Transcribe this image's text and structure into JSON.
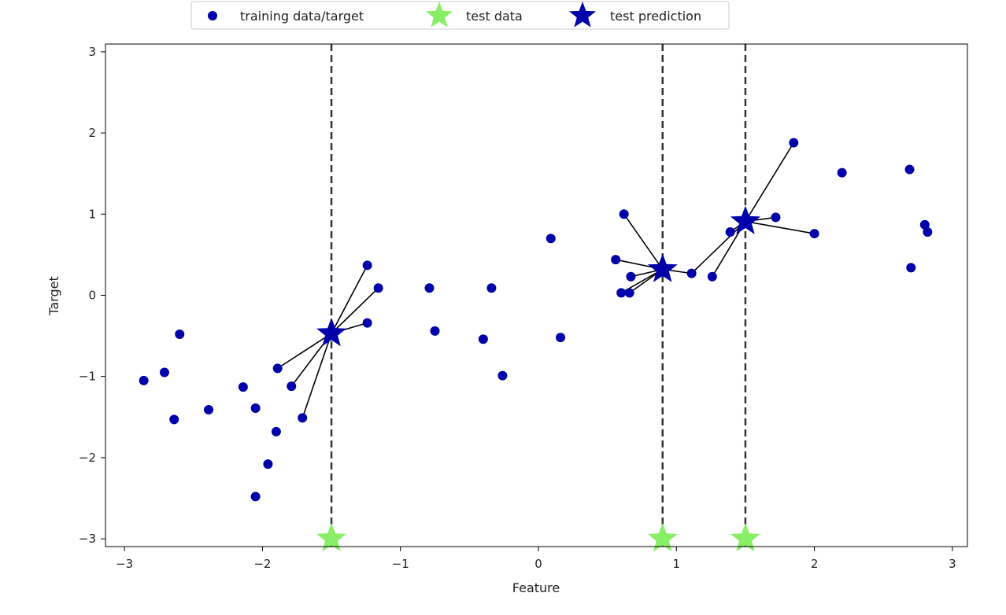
{
  "chart_data": {
    "type": "scatter",
    "title": "",
    "xlabel": "Feature",
    "ylabel": "Target",
    "xlim": [
      -3.15,
      3.1
    ],
    "ylim": [
      -3.1,
      3.1
    ],
    "xticks": [
      -3,
      -2,
      -1,
      0,
      1,
      2,
      3
    ],
    "yticks": [
      -3,
      -2,
      -1,
      0,
      1,
      2,
      3
    ],
    "grid": false,
    "legend_placement": "top-center (above plot)",
    "colors": {
      "training": "#0000aa",
      "test_data": "#88ee66",
      "prediction": "#0000aa",
      "vline": "#333333",
      "link": "#000000"
    },
    "series": [
      {
        "name": "training data/target",
        "marker": "circle",
        "points": [
          [
            -2.86,
            -1.05
          ],
          [
            -2.71,
            -0.95
          ],
          [
            -2.64,
            -1.53
          ],
          [
            -2.6,
            -0.48
          ],
          [
            -2.39,
            -1.41
          ],
          [
            -2.14,
            -1.13
          ],
          [
            -2.05,
            -1.39
          ],
          [
            -1.96,
            -2.08
          ],
          [
            -2.05,
            -2.48
          ],
          [
            -1.9,
            -1.68
          ],
          [
            -1.89,
            -0.9
          ],
          [
            -1.79,
            -1.12
          ],
          [
            -1.71,
            -1.51
          ],
          [
            -1.24,
            0.37
          ],
          [
            -1.16,
            0.09
          ],
          [
            -1.24,
            -0.34
          ],
          [
            -0.79,
            0.09
          ],
          [
            -0.75,
            -0.44
          ],
          [
            -0.4,
            -0.54
          ],
          [
            -0.34,
            0.09
          ],
          [
            -0.26,
            -0.99
          ],
          [
            0.09,
            0.7
          ],
          [
            0.16,
            -0.52
          ],
          [
            0.56,
            0.44
          ],
          [
            0.62,
            1.0
          ],
          [
            0.6,
            0.03
          ],
          [
            0.66,
            0.03
          ],
          [
            0.67,
            0.23
          ],
          [
            1.11,
            0.27
          ],
          [
            1.26,
            0.23
          ],
          [
            1.39,
            0.78
          ],
          [
            1.72,
            0.96
          ],
          [
            1.85,
            1.88
          ],
          [
            2.0,
            0.76
          ],
          [
            2.2,
            1.51
          ],
          [
            2.69,
            1.55
          ],
          [
            2.7,
            0.34
          ],
          [
            2.8,
            0.87
          ],
          [
            2.82,
            0.78
          ]
        ]
      },
      {
        "name": "test data",
        "marker": "star",
        "points": [
          [
            -1.5,
            -3
          ],
          [
            0.9,
            -3
          ],
          [
            1.5,
            -3
          ]
        ]
      },
      {
        "name": "test prediction",
        "marker": "star",
        "points": [
          [
            -1.5,
            -0.47
          ],
          [
            0.9,
            0.32
          ],
          [
            1.5,
            0.91
          ]
        ]
      }
    ],
    "neighbor_links": [
      {
        "from": [
          -1.5,
          -0.47
        ],
        "to": [
          [
            -1.24,
            0.37
          ],
          [
            -1.16,
            0.09
          ],
          [
            -1.24,
            -0.34
          ],
          [
            -1.89,
            -0.9
          ],
          [
            -1.79,
            -1.12
          ],
          [
            -1.71,
            -1.51
          ]
        ]
      },
      {
        "from": [
          0.9,
          0.32
        ],
        "to": [
          [
            1.11,
            0.27
          ],
          [
            0.67,
            0.23
          ],
          [
            0.66,
            0.03
          ],
          [
            0.6,
            0.03
          ],
          [
            0.62,
            1.0
          ],
          [
            0.56,
            0.44
          ]
        ]
      },
      {
        "from": [
          1.5,
          0.91
        ],
        "to": [
          [
            1.39,
            0.78
          ],
          [
            1.72,
            0.96
          ],
          [
            1.26,
            0.23
          ],
          [
            1.85,
            1.88
          ],
          [
            1.11,
            0.27
          ],
          [
            2.0,
            0.76
          ]
        ]
      }
    ],
    "vlines_x": [
      -1.5,
      0.9,
      1.5
    ]
  }
}
